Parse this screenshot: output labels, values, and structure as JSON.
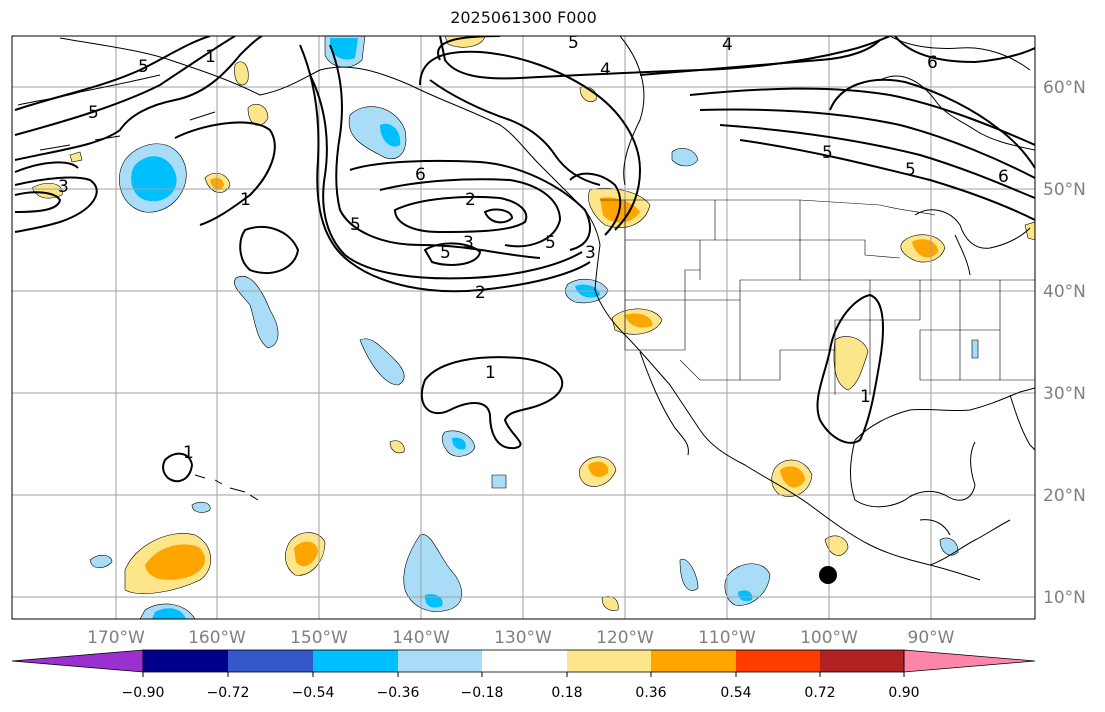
{
  "title": "2025061300 F000",
  "map": {
    "lon_ticks": [
      "170°W",
      "160°W",
      "150°W",
      "140°W",
      "130°W",
      "120°W",
      "110°W",
      "100°W",
      "90°W"
    ],
    "lat_ticks": [
      "60°N",
      "50°N",
      "40°N",
      "30°N",
      "20°N",
      "10°N"
    ],
    "contour_labels": [
      "1",
      "2",
      "3",
      "4",
      "5",
      "6"
    ],
    "marker": "black-dot"
  },
  "colorbar": {
    "labels": [
      "−0.90",
      "−0.72",
      "−0.54",
      "−0.36",
      "−0.18",
      "0.18",
      "0.36",
      "0.54",
      "0.72",
      "0.90"
    ],
    "colors": [
      "#9b30d0",
      "#00008b",
      "#3457c9",
      "#00bfff",
      "#a8dcf7",
      "#ffffff",
      "#fde68a",
      "#ffa500",
      "#ff3c00",
      "#b22222",
      "#ff85a8"
    ]
  }
}
